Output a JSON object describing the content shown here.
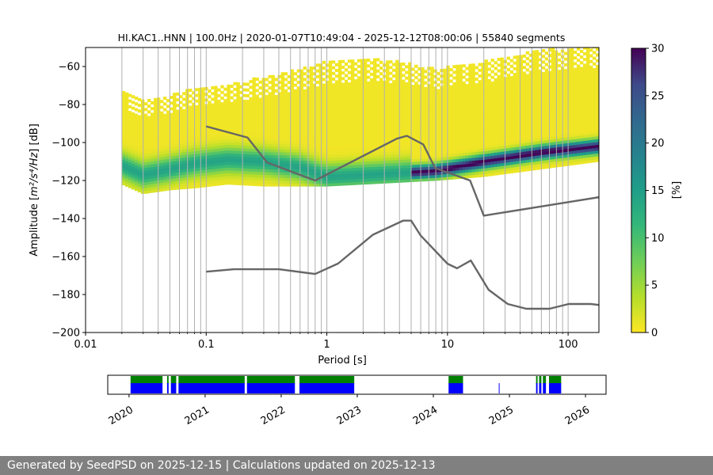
{
  "chart_data": [
    {
      "type": "heatmap",
      "title": "HI.KAC1..HNN | 100.0Hz | 2020-01-07T10:49:04 - 2025-12-12T08:00:06 | 55840 segments",
      "xlabel": "Period [s]",
      "ylabel_prefix": "Amplitude [",
      "ylabel_math": "m²/s⁴/Hz",
      "ylabel_suffix": "] [dB]",
      "xscale": "log",
      "xlim": [
        0.01,
        180
      ],
      "ylim": [
        -200,
        -50
      ],
      "x_ticks": [
        {
          "value": 0.01,
          "label": "0.01"
        },
        {
          "value": 0.1,
          "label": "0.1"
        },
        {
          "value": 1,
          "label": "1"
        },
        {
          "value": 10,
          "label": "10"
        },
        {
          "value": 100,
          "label": "100"
        }
      ],
      "y_ticks": [
        {
          "value": -60,
          "label": "−60"
        },
        {
          "value": -80,
          "label": "−80"
        },
        {
          "value": -100,
          "label": "−100"
        },
        {
          "value": -120,
          "label": "−120"
        },
        {
          "value": -140,
          "label": "−140"
        },
        {
          "value": -160,
          "label": "−160"
        },
        {
          "value": -180,
          "label": "−180"
        },
        {
          "value": -200,
          "label": "−200"
        }
      ],
      "grid": "vertical, at period decades and minor ticks",
      "psd_density": {
        "period_start": 0.02,
        "columns": [
          {
            "period": 0.02,
            "lower": -122,
            "upper": -74,
            "mode": -112
          },
          {
            "period": 0.03,
            "lower": -127,
            "upper": -78,
            "mode": -117
          },
          {
            "period": 0.05,
            "lower": -125,
            "upper": -76,
            "mode": -114
          },
          {
            "period": 0.08,
            "lower": -124,
            "upper": -72,
            "mode": -111
          },
          {
            "period": 0.15,
            "lower": -122,
            "upper": -70,
            "mode": -109
          },
          {
            "period": 0.3,
            "lower": -123,
            "upper": -66,
            "mode": -110
          },
          {
            "period": 0.6,
            "lower": -123,
            "upper": -62,
            "mode": -113
          },
          {
            "period": 1.0,
            "lower": -123,
            "upper": -58,
            "mode": -118
          },
          {
            "period": 2.0,
            "lower": -122,
            "upper": -56,
            "mode": -117
          },
          {
            "period": 4.0,
            "lower": -121,
            "upper": -58,
            "mode": -116
          },
          {
            "period": 8.0,
            "lower": -120,
            "upper": -62,
            "mode": -115
          },
          {
            "period": 20.0,
            "lower": -118,
            "upper": -58,
            "mode": -110
          },
          {
            "period": 60.0,
            "lower": -114,
            "upper": -52,
            "mode": -105
          },
          {
            "period": 180.0,
            "lower": -110,
            "upper": -50,
            "mode": -102
          }
        ]
      },
      "noise_models": [
        {
          "name": "high noise model",
          "points": [
            [
              0.1,
              -91.5
            ],
            [
              0.22,
              -97.4
            ],
            [
              0.32,
              -110.5
            ],
            [
              0.8,
              -120
            ],
            [
              3.8,
              -98
            ],
            [
              4.6,
              -96.5
            ],
            [
              6.3,
              -101
            ],
            [
              7.9,
              -113.5
            ],
            [
              15.4,
              -120
            ],
            [
              20,
              -138.5
            ],
            [
              180,
              -128.8
            ]
          ]
        },
        {
          "name": "low noise model",
          "points": [
            [
              0.1,
              -168
            ],
            [
              0.17,
              -166.7
            ],
            [
              0.4,
              -166.7
            ],
            [
              0.8,
              -169.2
            ],
            [
              1.24,
              -163.7
            ],
            [
              2.4,
              -148.6
            ],
            [
              4.3,
              -141.1
            ],
            [
              5,
              -141.1
            ],
            [
              6,
              -149
            ],
            [
              10,
              -163.8
            ],
            [
              12,
              -166.2
            ],
            [
              15.6,
              -162.1
            ],
            [
              21.9,
              -177.5
            ],
            [
              31.6,
              -185
            ],
            [
              45,
              -187.5
            ],
            [
              70,
              -187.5
            ],
            [
              101,
              -185
            ],
            [
              154,
              -185
            ],
            [
              180,
              -185.5
            ]
          ]
        }
      ],
      "colors": {
        "noise_model": "#666666",
        "grid": "#b0b0b0"
      }
    },
    {
      "type": "colorbar",
      "label": "[%]",
      "range": [
        0,
        30
      ],
      "ticks": [
        "0",
        "5",
        "10",
        "15",
        "20",
        "25",
        "30"
      ],
      "colormap": "viridis_r"
    },
    {
      "type": "availability-timeline",
      "x_ticks": [
        "2020",
        "2021",
        "2022",
        "2023",
        "2024",
        "2025",
        "2026"
      ],
      "segments_green": [
        [
          2020.02,
          2020.44
        ],
        [
          2020.5,
          2020.52
        ],
        [
          2020.55,
          2020.62
        ],
        [
          2020.65,
          2021.52
        ],
        [
          2021.55,
          2022.18
        ],
        [
          2022.24,
          2022.96
        ],
        [
          2024.2,
          2024.39
        ],
        [
          2025.35,
          2025.37
        ],
        [
          2025.39,
          2025.42
        ],
        [
          2025.44,
          2025.48
        ],
        [
          2025.52,
          2025.68
        ]
      ],
      "segments_blue": [
        [
          2020.02,
          2020.44
        ],
        [
          2020.5,
          2020.52
        ],
        [
          2020.55,
          2020.62
        ],
        [
          2020.65,
          2021.52
        ],
        [
          2021.55,
          2022.18
        ],
        [
          2022.24,
          2022.96
        ],
        [
          2024.2,
          2024.39
        ],
        [
          2024.86,
          2024.87
        ],
        [
          2025.35,
          2025.37
        ],
        [
          2025.39,
          2025.42
        ],
        [
          2025.44,
          2025.48
        ],
        [
          2025.52,
          2025.68
        ]
      ],
      "colors": {
        "green": "#008000",
        "blue": "#0000ff"
      }
    }
  ],
  "footer": {
    "text": "Generated by SeedPSD on 2025-12-15 | Calculations updated on 2025-12-13"
  }
}
